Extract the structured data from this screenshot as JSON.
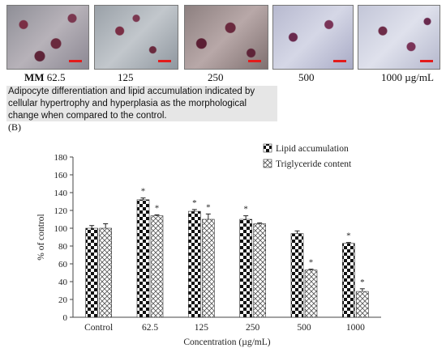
{
  "micrograph_labels": [
    {
      "bold": "MM",
      "text": " 62.5"
    },
    {
      "bold": "",
      "text": "125"
    },
    {
      "bold": "",
      "text": "250"
    },
    {
      "bold": "",
      "text": "500"
    },
    {
      "bold": "",
      "text": "1000 µg/mL"
    }
  ],
  "description": "Adipocyte differentiation and lipid accumulation indicated by cellular hypertrophy and hyperplasia as the morphological change when compared to the control.",
  "panel_label": "(B)",
  "colors": {
    "scale_bar": "#e31b1b",
    "description_bg": "#e6e6e6"
  },
  "chart_data": {
    "type": "bar",
    "categories": [
      "Control",
      "62.5",
      "125",
      "250",
      "500",
      "1000"
    ],
    "xlabel": "Concentration (µg/mL)",
    "ylabel": "% of control",
    "ylim": [
      0,
      180
    ],
    "yticks": [
      0,
      20,
      40,
      60,
      80,
      100,
      120,
      140,
      160,
      180
    ],
    "legend_position": "top-right",
    "grid": false,
    "series": [
      {
        "name": "Lipid accumulation",
        "pattern": "checkerboard",
        "values": [
          100,
          132,
          119,
          110,
          94,
          83
        ],
        "errors": [
          3,
          2,
          2,
          4,
          3,
          1
        ],
        "significance": [
          "",
          "*",
          "*",
          "*",
          "",
          "*"
        ]
      },
      {
        "name": "Triglyceride content",
        "pattern": "crosshatch",
        "values": [
          100,
          114,
          110,
          105,
          53,
          29
        ],
        "errors": [
          5,
          1,
          6,
          1,
          1,
          3
        ],
        "significance": [
          "",
          "*",
          "*",
          "",
          "*",
          "*"
        ]
      }
    ]
  }
}
